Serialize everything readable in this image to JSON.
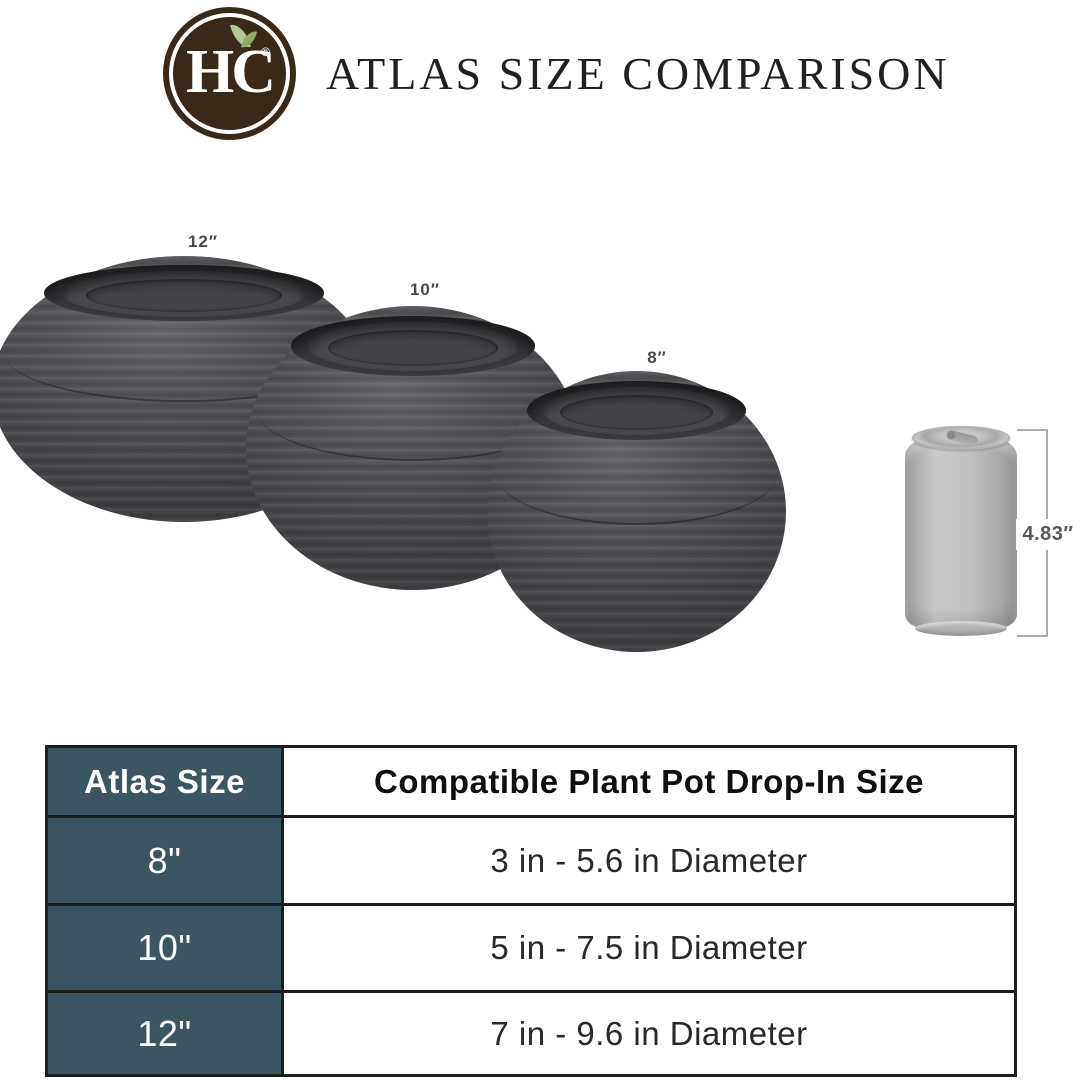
{
  "brand": {
    "letters": "HC",
    "registered_mark": "®",
    "leaf_icon": "sprout-leaf-icon",
    "circle_color": "#38291B"
  },
  "header": {
    "title": "ATLAS SIZE COMPARISON"
  },
  "planters": [
    {
      "label": "12″",
      "name": "planter-12-inch"
    },
    {
      "label": "10″",
      "name": "planter-10-inch"
    },
    {
      "label": "8″",
      "name": "planter-8-inch"
    }
  ],
  "scale_reference": {
    "object": "soda-can",
    "height_label": "4.83″"
  },
  "table": {
    "columns": [
      "Atlas Size",
      "Compatible Plant Pot Drop-In Size"
    ],
    "rows": [
      {
        "size": "8\"",
        "fit": "3 in - 5.6 in Diameter"
      },
      {
        "size": "10\"",
        "fit": "5 in - 7.5 in Diameter"
      },
      {
        "size": "12\"",
        "fit": "7 in - 9.6 in Diameter"
      }
    ]
  },
  "colors": {
    "teal_header": "#3A5661",
    "table_border": "#1E1E1E",
    "pot_gray": "#4B4B4F",
    "can_gray": "#B5B5B7",
    "dimension_line": "#ACACAE",
    "title_text": "#221F20"
  }
}
